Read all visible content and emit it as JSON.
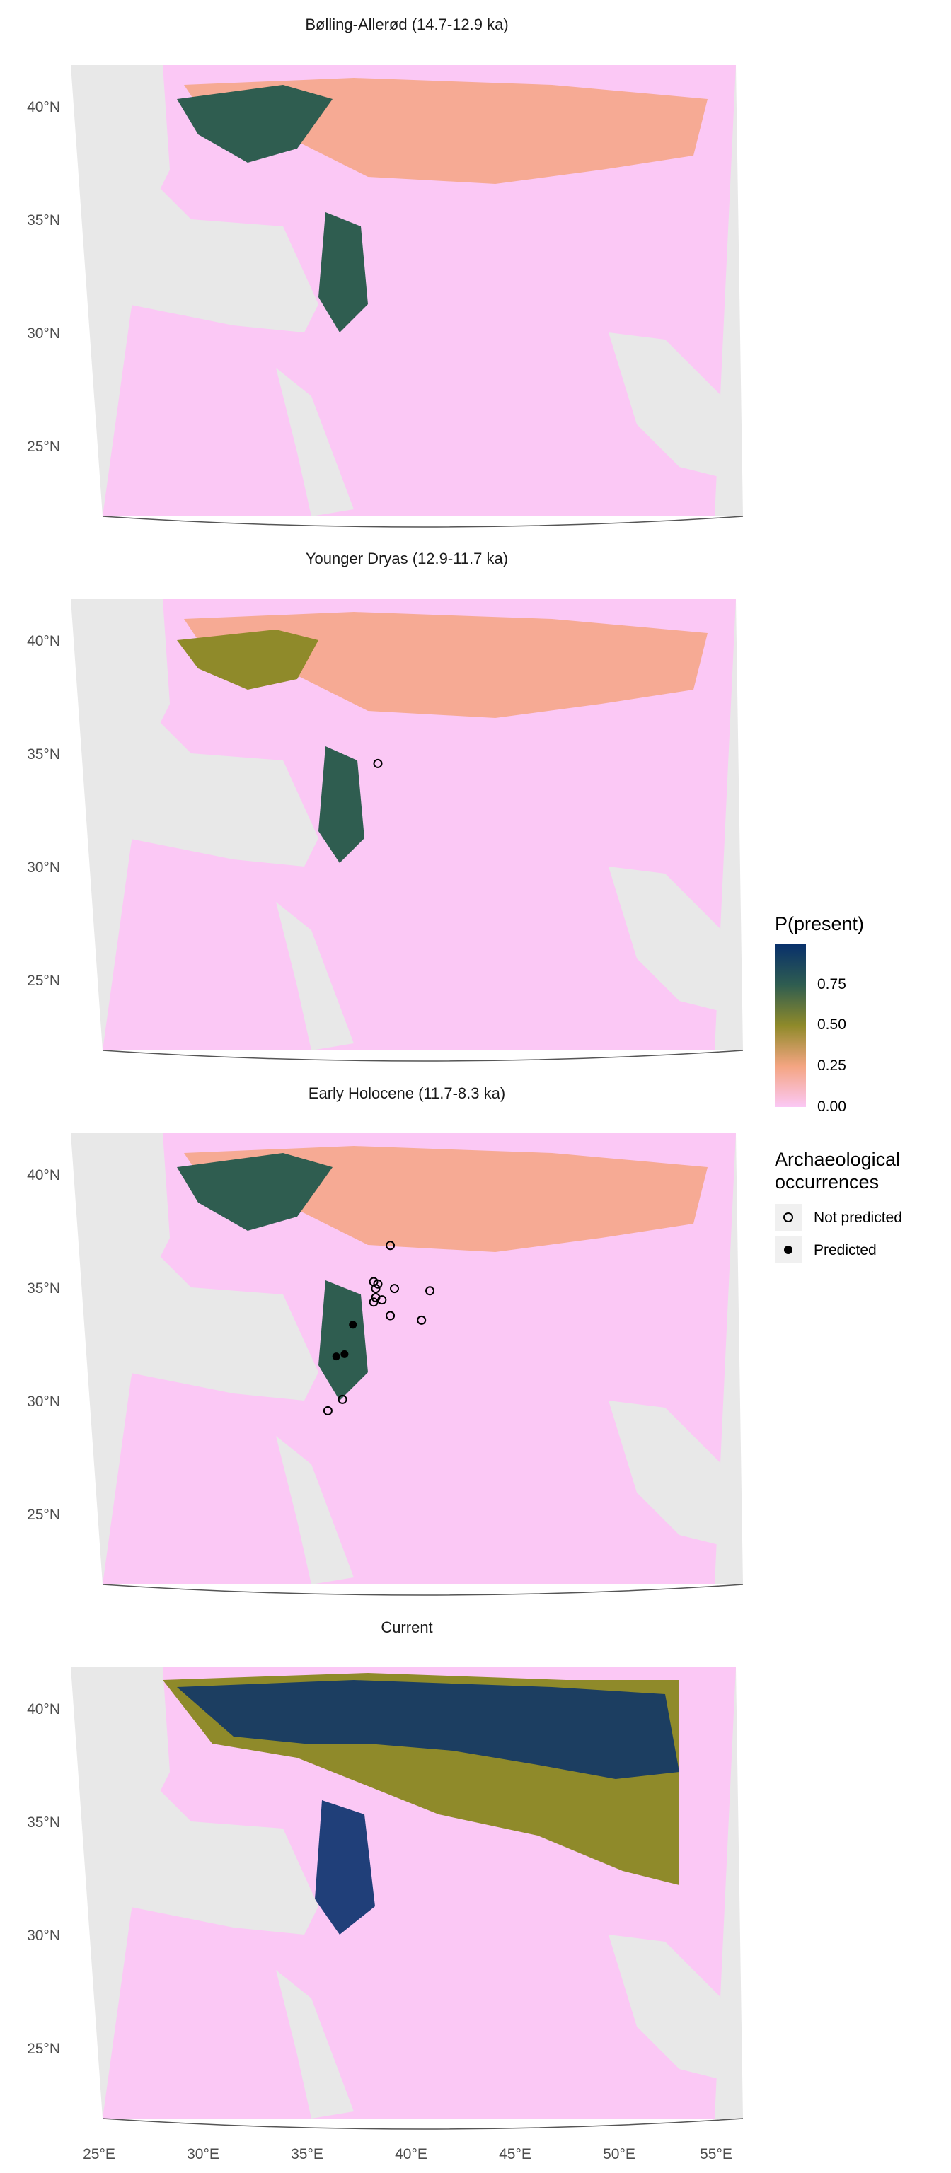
{
  "figure": {
    "legend_fill": {
      "title": "P(present)",
      "ticks": [
        "0.75",
        "0.50",
        "0.25",
        "0.00"
      ],
      "colors": [
        "#08306b",
        "#2f5d50",
        "#8f8a2a",
        "#f4a582",
        "#fbc8f5"
      ]
    },
    "legend_points": {
      "title_line1": "Archaeological",
      "title_line2": "occurrences",
      "items": [
        {
          "label": "Not predicted",
          "symbol": "open-circle"
        },
        {
          "label": "Predicted",
          "symbol": "filled-circle"
        }
      ]
    },
    "lat_labels": [
      "40°N",
      "35°N",
      "30°N",
      "25°N"
    ],
    "lon_labels": [
      "25°E",
      "30°E",
      "35°E",
      "40°E",
      "45°E",
      "50°E",
      "55°E"
    ],
    "colors": {
      "land": "#e8e8e8",
      "low": "#fbc8f5",
      "mid": "#f4a582",
      "high": "#08306b",
      "coast": "#555555"
    }
  },
  "panels": [
    {
      "title": "Bølling-Allerød (14.7-12.9 ka)",
      "level": "lowmid"
    },
    {
      "title": "Younger Dryas (12.9-11.7 ka)",
      "level": "low"
    },
    {
      "title": "Early Holocene (11.7-8.3 ka)",
      "level": "lowmid"
    },
    {
      "title": "Current",
      "level": "high"
    }
  ],
  "occurrences": [
    {
      "lon": 38.4,
      "lat": 34.8,
      "status": "Not predicted",
      "panel": "Younger Dryas (12.9-11.7 ka)"
    },
    {
      "lon": 39.0,
      "lat": 37.1,
      "status": "Not predicted",
      "panel": "Early Holocene (11.7-8.3 ka)"
    },
    {
      "lon": 38.2,
      "lat": 35.5,
      "status": "Not predicted",
      "panel": "Early Holocene (11.7-8.3 ka)"
    },
    {
      "lon": 38.4,
      "lat": 35.4,
      "status": "Not predicted",
      "panel": "Early Holocene (11.7-8.3 ka)"
    },
    {
      "lon": 38.3,
      "lat": 35.2,
      "status": "Not predicted",
      "panel": "Early Holocene (11.7-8.3 ka)"
    },
    {
      "lon": 39.2,
      "lat": 35.2,
      "status": "Not predicted",
      "panel": "Early Holocene (11.7-8.3 ka)"
    },
    {
      "lon": 40.9,
      "lat": 35.1,
      "status": "Not predicted",
      "panel": "Early Holocene (11.7-8.3 ka)"
    },
    {
      "lon": 38.3,
      "lat": 34.8,
      "status": "Not predicted",
      "panel": "Early Holocene (11.7-8.3 ka)"
    },
    {
      "lon": 38.6,
      "lat": 34.7,
      "status": "Not predicted",
      "panel": "Early Holocene (11.7-8.3 ka)"
    },
    {
      "lon": 38.2,
      "lat": 34.6,
      "status": "Not predicted",
      "panel": "Early Holocene (11.7-8.3 ka)"
    },
    {
      "lon": 39.0,
      "lat": 34.0,
      "status": "Not predicted",
      "panel": "Early Holocene (11.7-8.3 ka)"
    },
    {
      "lon": 40.5,
      "lat": 33.8,
      "status": "Not predicted",
      "panel": "Early Holocene (11.7-8.3 ka)"
    },
    {
      "lon": 37.2,
      "lat": 33.6,
      "status": "Predicted",
      "panel": "Early Holocene (11.7-8.3 ka)"
    },
    {
      "lon": 36.8,
      "lat": 32.3,
      "status": "Predicted",
      "panel": "Early Holocene (11.7-8.3 ka)"
    },
    {
      "lon": 36.4,
      "lat": 32.2,
      "status": "Predicted",
      "panel": "Early Holocene (11.7-8.3 ka)"
    },
    {
      "lon": 36.7,
      "lat": 30.3,
      "status": "Not predicted",
      "panel": "Early Holocene (11.7-8.3 ka)"
    },
    {
      "lon": 36.0,
      "lat": 29.8,
      "status": "Not predicted",
      "panel": "Early Holocene (11.7-8.3 ka)"
    }
  ]
}
